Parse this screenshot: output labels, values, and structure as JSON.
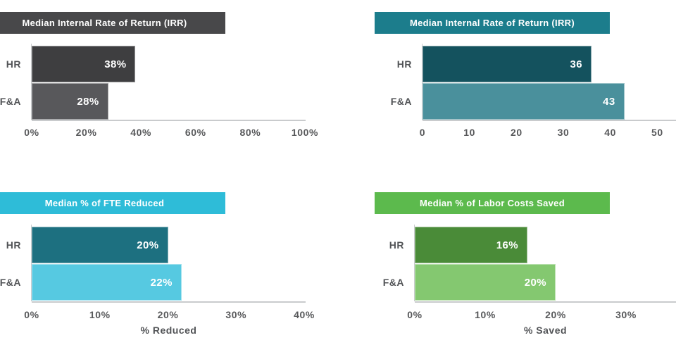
{
  "page": {
    "background": "#ffffff"
  },
  "axis_style": {
    "line_color": "#c9cbcd",
    "tick_text_color": "#58595b",
    "category_text_color": "#515356"
  },
  "chart_data": [
    {
      "type": "bar",
      "orientation": "horizontal",
      "title": "Median Internal Rate of Return (IRR)",
      "categories": [
        "HR",
        "F&A"
      ],
      "values": [
        38,
        28
      ],
      "value_labels": [
        "38%",
        "28%"
      ],
      "x_ticks": [
        "0%",
        "20%",
        "40%",
        "60%",
        "80%",
        "100%"
      ],
      "xlim": [
        0,
        100
      ],
      "xlabel": "",
      "grid": false,
      "legend": "none",
      "colors": {
        "header_bg": "#48484a",
        "header_text": "#ffffff",
        "bars": [
          "#3e3e40",
          "#58585b"
        ],
        "value_text": "#ffffff"
      }
    },
    {
      "type": "bar",
      "orientation": "horizontal",
      "title": "Median Internal Rate of Return (IRR)",
      "categories": [
        "HR",
        "F&A"
      ],
      "values": [
        36,
        43
      ],
      "value_labels": [
        "36",
        "43"
      ],
      "x_ticks": [
        "0",
        "10",
        "20",
        "30",
        "40",
        "50"
      ],
      "xlim": [
        0,
        50
      ],
      "xlabel": "",
      "grid": false,
      "legend": "none",
      "colors": {
        "header_bg": "#1c7d8c",
        "header_text": "#ffffff",
        "bars": [
          "#14525e",
          "#4a909c"
        ],
        "value_text": "#ffffff"
      }
    },
    {
      "type": "bar",
      "orientation": "horizontal",
      "title": "Median % of FTE Reduced",
      "categories": [
        "HR",
        "F&A"
      ],
      "values": [
        20,
        22
      ],
      "value_labels": [
        "20%",
        "22%"
      ],
      "x_ticks": [
        "0%",
        "10%",
        "20%",
        "30%",
        "40%"
      ],
      "xlim": [
        0,
        40
      ],
      "xlabel": "% Reduced",
      "grid": false,
      "legend": "none",
      "colors": {
        "header_bg": "#2ebcd8",
        "header_text": "#ffffff",
        "bars": [
          "#1d7080",
          "#56c9e1"
        ],
        "value_text": "#ffffff"
      }
    },
    {
      "type": "bar",
      "orientation": "horizontal",
      "title": "Median % of Labor Costs Saved",
      "categories": [
        "HR",
        "F&A"
      ],
      "values": [
        16,
        20
      ],
      "value_labels": [
        "16%",
        "20%"
      ],
      "x_ticks": [
        "0%",
        "10%",
        "20%",
        "30%"
      ],
      "xlim": [
        0,
        40
      ],
      "xlabel": "% Saved",
      "grid": false,
      "legend": "none",
      "colors": {
        "header_bg": "#5cba4d",
        "header_text": "#ffffff",
        "bars": [
          "#4a8b38",
          "#84c870"
        ],
        "value_text": "#ffffff"
      }
    }
  ]
}
